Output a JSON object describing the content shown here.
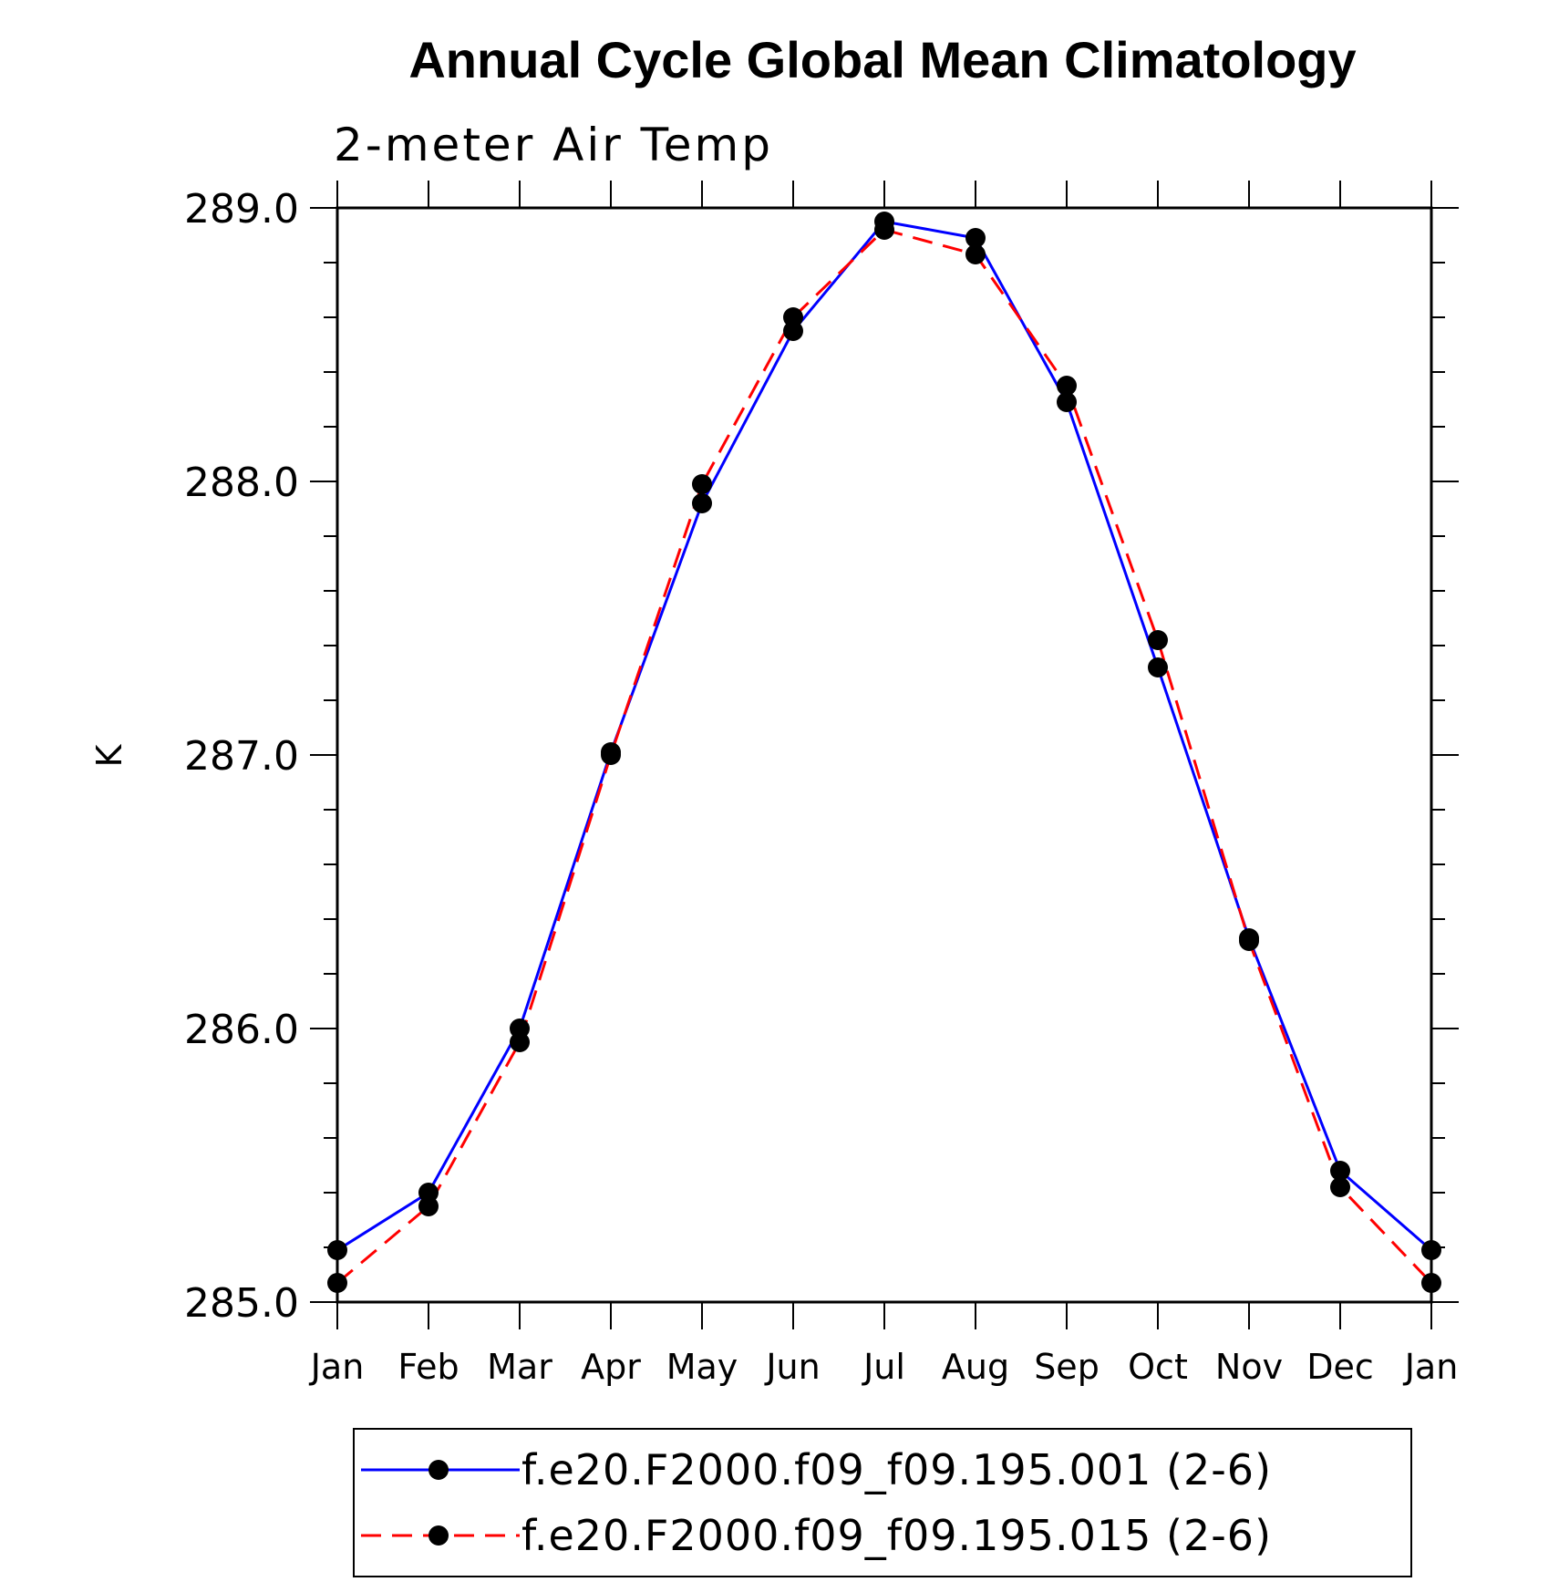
{
  "chart_data": {
    "type": "line",
    "title": "Annual Cycle Global Mean Climatology",
    "subtitle": "2-meter Air Temp",
    "xlabel": "",
    "ylabel": "K",
    "categories": [
      "Jan",
      "Feb",
      "Mar",
      "Apr",
      "May",
      "Jun",
      "Jul",
      "Aug",
      "Sep",
      "Oct",
      "Nov",
      "Dec",
      "Jan"
    ],
    "ylim": [
      285.0,
      289.0
    ],
    "yticks": [
      "285.0",
      "286.0",
      "287.0",
      "288.0",
      "289.0"
    ],
    "series": [
      {
        "name": "f.e20.F2000.f09_f09.195.001 (2-6)",
        "color": "#0000ff",
        "dash": "solid",
        "marker": "filled-circle",
        "values": [
          285.19,
          285.4,
          286.0,
          287.01,
          287.92,
          288.55,
          288.95,
          288.89,
          288.29,
          287.32,
          286.33,
          285.48,
          285.19
        ]
      },
      {
        "name": "f.e20.F2000.f09_f09.195.015 (2-6)",
        "color": "#ff0000",
        "dash": "dashed",
        "marker": "filled-circle",
        "values": [
          285.07,
          285.35,
          285.95,
          287.0,
          287.99,
          288.6,
          288.92,
          288.83,
          288.35,
          287.42,
          286.32,
          285.42,
          285.07
        ]
      }
    ],
    "grid": false,
    "legend_position": "bottom"
  },
  "colors": {
    "marker": "#000000",
    "axes": "#000000"
  }
}
